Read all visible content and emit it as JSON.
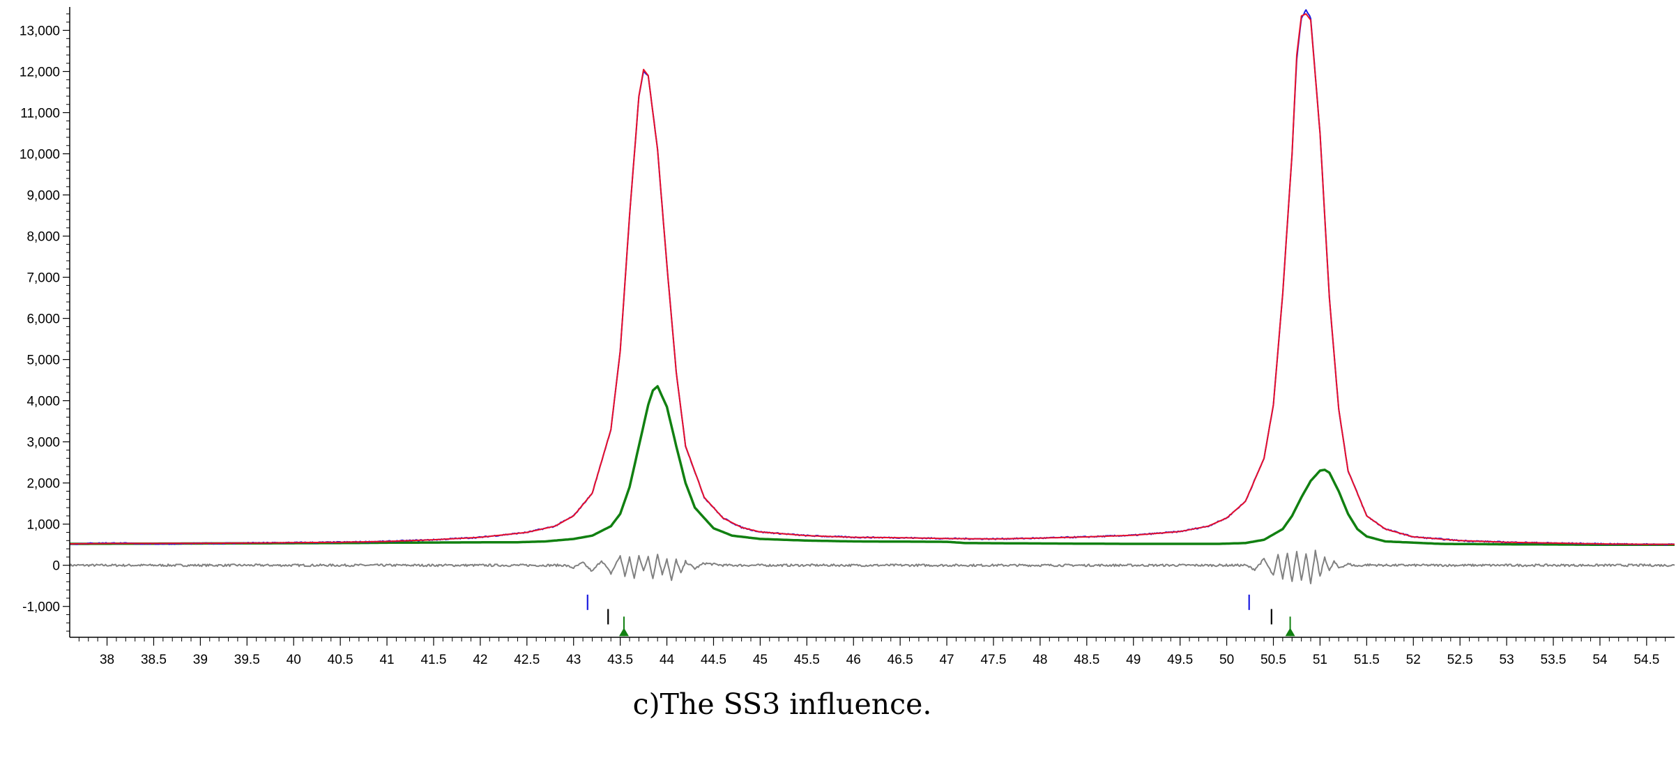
{
  "caption": "c)The SS3 influence.",
  "chart_data": {
    "type": "line",
    "title": "",
    "xlabel": "",
    "ylabel": "",
    "xlim": [
      37.6,
      54.8
    ],
    "ylim": [
      -1750,
      13500
    ],
    "grid": false,
    "legend": "none",
    "x_ticks": [
      38,
      38.5,
      39,
      39.5,
      40,
      40.5,
      41,
      41.5,
      42,
      42.5,
      43,
      43.5,
      44,
      44.5,
      45,
      45.5,
      46,
      46.5,
      47,
      47.5,
      48,
      48.5,
      49,
      49.5,
      50,
      50.5,
      51,
      51.5,
      52,
      52.5,
      53,
      53.5,
      54,
      54.5
    ],
    "x_tick_labels": [
      "38",
      "38.5",
      "39",
      "39.5",
      "40",
      "40.5",
      "41",
      "41.5",
      "42",
      "42.5",
      "43",
      "43.5",
      "44",
      "44.5",
      "45",
      "45.5",
      "46",
      "46.5",
      "47",
      "47.5",
      "48",
      "48.5",
      "49",
      "49.5",
      "50",
      "50.5",
      "51",
      "51.5",
      "52",
      "52.5",
      "53",
      "53.5",
      "54",
      "54.5"
    ],
    "y_ticks": [
      -1000,
      0,
      1000,
      2000,
      3000,
      4000,
      5000,
      6000,
      7000,
      8000,
      9000,
      10000,
      11000,
      12000,
      13000
    ],
    "y_tick_labels": [
      "-1,000",
      "0",
      "1,000",
      "2,000",
      "3,000",
      "4,000",
      "5,000",
      "6,000",
      "7,000",
      "8,000",
      "9,000",
      "10,000",
      "11,000",
      "12,000",
      "13,000"
    ],
    "colors": {
      "observed": "#1a1ae0",
      "calculated": "#e8102a",
      "phase": "#118011",
      "difference": "#808080",
      "marker_blue": "#1a1ae0",
      "marker_black": "#000000",
      "marker_green": "#118011"
    },
    "series": [
      {
        "role": "observed",
        "x": [
          37.6,
          38.0,
          38.5,
          39.0,
          39.5,
          40.0,
          40.5,
          41.0,
          41.5,
          42.0,
          42.5,
          42.8,
          43.0,
          43.2,
          43.4,
          43.5,
          43.6,
          43.7,
          43.75,
          43.8,
          43.9,
          44.0,
          44.1,
          44.2,
          44.4,
          44.6,
          44.8,
          45.0,
          45.5,
          46.0,
          46.5,
          47.0,
          47.5,
          48.0,
          48.5,
          49.0,
          49.5,
          49.8,
          50.0,
          50.2,
          50.4,
          50.5,
          50.6,
          50.7,
          50.75,
          50.8,
          50.85,
          50.9,
          51.0,
          51.1,
          51.2,
          51.3,
          51.5,
          51.7,
          52.0,
          52.5,
          53.0,
          53.5,
          54.0,
          54.5,
          54.8
        ],
        "y": [
          520,
          540,
          520,
          530,
          540,
          550,
          560,
          580,
          620,
          680,
          800,
          950,
          1200,
          1750,
          3300,
          5200,
          8500,
          11400,
          12000,
          11900,
          10100,
          7300,
          4700,
          2900,
          1650,
          1150,
          920,
          810,
          720,
          680,
          670,
          650,
          640,
          660,
          690,
          730,
          820,
          950,
          1150,
          1550,
          2600,
          3900,
          6600,
          10000,
          12300,
          13300,
          13500,
          13300,
          10500,
          6500,
          3800,
          2300,
          1200,
          880,
          690,
          600,
          560,
          540,
          520,
          510,
          510
        ]
      },
      {
        "role": "calculated",
        "x": [
          37.6,
          38.0,
          38.5,
          39.0,
          39.5,
          40.0,
          40.5,
          41.0,
          41.5,
          42.0,
          42.5,
          42.8,
          43.0,
          43.2,
          43.4,
          43.5,
          43.6,
          43.7,
          43.75,
          43.8,
          43.9,
          44.0,
          44.1,
          44.2,
          44.4,
          44.6,
          44.8,
          45.0,
          45.5,
          46.0,
          46.5,
          47.0,
          47.5,
          48.0,
          48.5,
          49.0,
          49.5,
          49.8,
          50.0,
          50.2,
          50.4,
          50.5,
          50.6,
          50.7,
          50.75,
          50.8,
          50.85,
          50.9,
          51.0,
          51.1,
          51.2,
          51.3,
          51.5,
          51.7,
          52.0,
          52.5,
          53.0,
          53.5,
          54.0,
          54.5,
          54.8
        ],
        "y": [
          520,
          530,
          530,
          535,
          540,
          550,
          560,
          580,
          620,
          680,
          800,
          950,
          1200,
          1750,
          3300,
          5200,
          8500,
          11400,
          12050,
          11900,
          10100,
          7300,
          4700,
          2900,
          1650,
          1150,
          920,
          810,
          720,
          680,
          670,
          650,
          640,
          660,
          690,
          730,
          820,
          950,
          1150,
          1550,
          2600,
          3900,
          6600,
          10000,
          12400,
          13350,
          13400,
          13250,
          10500,
          6500,
          3800,
          2300,
          1200,
          880,
          690,
          600,
          560,
          540,
          520,
          510,
          510
        ]
      },
      {
        "role": "phase",
        "x": [
          37.6,
          40.5,
          41.1,
          42.4,
          42.7,
          43.0,
          43.2,
          43.4,
          43.5,
          43.6,
          43.7,
          43.8,
          43.85,
          43.9,
          44.0,
          44.1,
          44.2,
          44.3,
          44.5,
          44.7,
          45.0,
          45.5,
          46.0,
          47.0,
          47.2,
          48.0,
          49.0,
          49.9,
          50.2,
          50.4,
          50.6,
          50.7,
          50.8,
          50.9,
          51.0,
          51.05,
          51.1,
          51.2,
          51.3,
          51.4,
          51.5,
          51.7,
          51.9,
          52.3,
          53.0,
          54.0,
          54.8
        ],
        "y": [
          520,
          540,
          550,
          560,
          580,
          640,
          720,
          950,
          1250,
          1900,
          2900,
          3900,
          4250,
          4350,
          3850,
          2900,
          2000,
          1400,
          900,
          720,
          640,
          600,
          580,
          570,
          540,
          530,
          520,
          520,
          540,
          620,
          880,
          1200,
          1650,
          2050,
          2300,
          2320,
          2250,
          1800,
          1250,
          880,
          700,
          580,
          560,
          520,
          510,
          500,
          500
        ]
      },
      {
        "role": "difference",
        "x": [
          37.6,
          42.9,
          43.0,
          43.1,
          43.2,
          43.3,
          43.4,
          43.5,
          43.55,
          43.6,
          43.65,
          43.7,
          43.75,
          43.8,
          43.85,
          43.9,
          43.95,
          44.0,
          44.05,
          44.1,
          44.15,
          44.2,
          44.3,
          44.4,
          44.6,
          50.2,
          50.3,
          50.4,
          50.5,
          50.55,
          50.6,
          50.65,
          50.7,
          50.75,
          50.8,
          50.85,
          50.9,
          50.95,
          51.0,
          51.05,
          51.1,
          51.15,
          51.2,
          51.3,
          51.4,
          51.5,
          51.7,
          54.8
        ],
        "y": [
          0,
          0,
          -60,
          60,
          -150,
          120,
          -200,
          230,
          -260,
          180,
          -320,
          250,
          -150,
          220,
          -320,
          270,
          -220,
          160,
          -380,
          140,
          -200,
          90,
          -80,
          50,
          0,
          0,
          -100,
          150,
          -260,
          250,
          -330,
          300,
          -400,
          360,
          -380,
          300,
          -470,
          350,
          -280,
          200,
          -140,
          90,
          -60,
          30,
          -20,
          10,
          0,
          0
        ]
      }
    ],
    "reflection_markers": [
      {
        "row": 1,
        "color": "blue",
        "x": [
          43.15,
          50.24
        ]
      },
      {
        "row": 2,
        "color": "black",
        "x": [
          43.37,
          50.48
        ]
      },
      {
        "row": 3,
        "color": "green",
        "x": [
          43.54,
          50.68
        ]
      }
    ]
  }
}
